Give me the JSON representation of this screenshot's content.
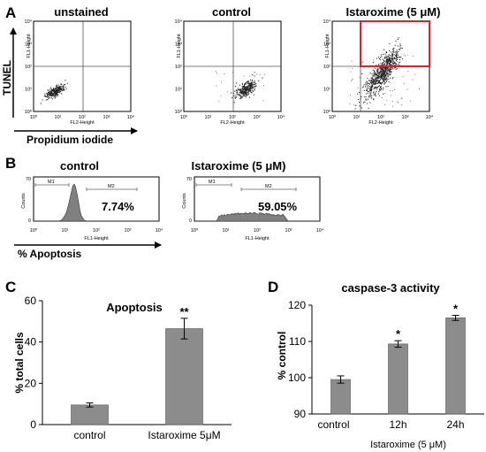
{
  "panel_letters": [
    "A",
    "B",
    "C",
    "D"
  ],
  "panel_a": {
    "plots": [
      {
        "title": "unstained",
        "gate_box": false
      },
      {
        "title": "control",
        "gate_box": false
      },
      {
        "title": "Istaroxime (5 μM)",
        "gate_box": true
      }
    ],
    "x_channel": "FL2-Height",
    "y_channel": "FL1-Height",
    "tick_labels": [
      "10⁰",
      "10¹",
      "10²",
      "10³",
      "10⁴"
    ],
    "y_arrow_label": "TUNEL",
    "x_arrow_label": "Propidium iodide",
    "gate_color": "#e0202a"
  },
  "panel_b": {
    "plots": [
      {
        "title": "control",
        "percent": "7.74%",
        "gate_left": "M1",
        "gate_right": "M2"
      },
      {
        "title": "Istaroxime (5 μM)",
        "percent": "59.05%",
        "gate_left": "M1",
        "gate_right": "M2"
      }
    ],
    "x_channel": "FL1-Height",
    "y_label": "Counts",
    "y_max_label": "70",
    "y_zero_label": "0",
    "tick_labels": [
      "10⁰",
      "10¹",
      "10²",
      "10³",
      "10⁴"
    ],
    "x_arrow_label": "% Apoptosis",
    "fill_color": "#808080"
  },
  "chart_data": [
    {
      "panel": "C",
      "type": "bar",
      "title": "Apoptosis",
      "ylabel": "% total cells",
      "categories": [
        "control",
        "Istaroxime 5μM"
      ],
      "values": [
        9.5,
        46.5
      ],
      "errors": [
        1.0,
        5.0
      ],
      "significance": [
        "",
        "**"
      ],
      "ylim": [
        0,
        60
      ],
      "yticks": [
        0,
        20,
        40,
        60
      ],
      "bar_color": "#8c8c8c"
    },
    {
      "panel": "D",
      "type": "bar",
      "title": "caspase-3 activity",
      "ylabel": "% control",
      "categories": [
        "control",
        "12h",
        "24h"
      ],
      "group_label": "Istaroxime (5 μM)",
      "values": [
        99.5,
        109.3,
        116.5
      ],
      "errors": [
        1.0,
        0.9,
        0.7
      ],
      "significance": [
        "",
        "*",
        "*"
      ],
      "ylim": [
        90,
        120
      ],
      "yticks": [
        90,
        100,
        110,
        120
      ],
      "bar_color": "#8c8c8c"
    }
  ]
}
